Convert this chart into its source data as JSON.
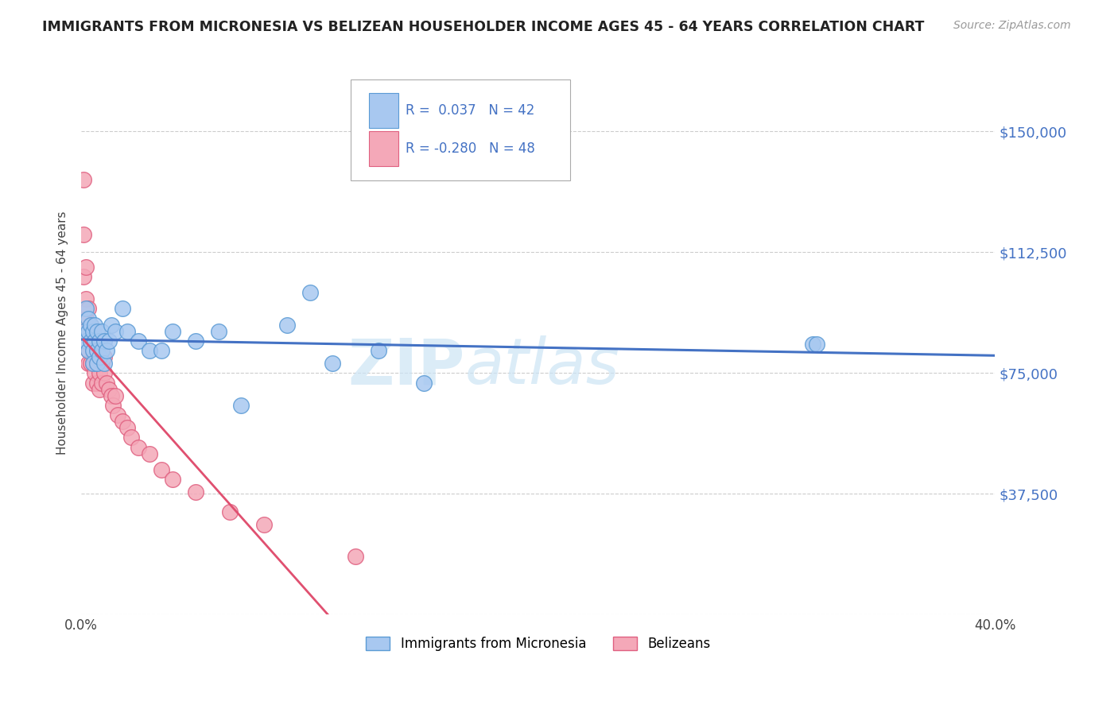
{
  "title": "IMMIGRANTS FROM MICRONESIA VS BELIZEAN HOUSEHOLDER INCOME AGES 45 - 64 YEARS CORRELATION CHART",
  "source_text": "Source: ZipAtlas.com",
  "ylabel": "Householder Income Ages 45 - 64 years",
  "xlim": [
    0.0,
    0.4
  ],
  "ylim": [
    0,
    175000
  ],
  "yticks": [
    0,
    37500,
    75000,
    112500,
    150000
  ],
  "ytick_labels": [
    "",
    "$37,500",
    "$75,000",
    "$112,500",
    "$150,000"
  ],
  "r_micronesia": 0.037,
  "n_micronesia": 42,
  "r_belizean": -0.28,
  "n_belizean": 48,
  "color_micronesia": "#a8c8f0",
  "color_belizean": "#f4a8b8",
  "edge_color_micronesia": "#5b9bd5",
  "edge_color_belizean": "#e06080",
  "trend_color_micronesia": "#4472c4",
  "trend_color_belizean": "#e05070",
  "trend_dash_color": "#e8b0c0",
  "watermark_color": "#cce4f5",
  "background_color": "#ffffff",
  "legend_box_color": "#f0f0f0",
  "scatter_micronesia_x": [
    0.001,
    0.002,
    0.002,
    0.003,
    0.003,
    0.003,
    0.004,
    0.004,
    0.005,
    0.005,
    0.005,
    0.006,
    0.006,
    0.007,
    0.007,
    0.007,
    0.008,
    0.008,
    0.009,
    0.009,
    0.01,
    0.01,
    0.011,
    0.012,
    0.013,
    0.015,
    0.018,
    0.02,
    0.025,
    0.03,
    0.035,
    0.04,
    0.05,
    0.06,
    0.07,
    0.09,
    0.1,
    0.11,
    0.13,
    0.15,
    0.32,
    0.322
  ],
  "scatter_micronesia_y": [
    88000,
    95000,
    85000,
    92000,
    88000,
    82000,
    90000,
    85000,
    88000,
    82000,
    78000,
    85000,
    90000,
    88000,
    82000,
    78000,
    85000,
    80000,
    88000,
    82000,
    85000,
    78000,
    82000,
    85000,
    90000,
    88000,
    95000,
    88000,
    85000,
    82000,
    82000,
    88000,
    85000,
    88000,
    65000,
    90000,
    100000,
    78000,
    82000,
    72000,
    84000,
    84000
  ],
  "scatter_belizean_x": [
    0.001,
    0.001,
    0.001,
    0.002,
    0.002,
    0.002,
    0.002,
    0.003,
    0.003,
    0.003,
    0.003,
    0.004,
    0.004,
    0.004,
    0.005,
    0.005,
    0.005,
    0.005,
    0.006,
    0.006,
    0.006,
    0.007,
    0.007,
    0.007,
    0.008,
    0.008,
    0.008,
    0.009,
    0.009,
    0.01,
    0.01,
    0.011,
    0.012,
    0.013,
    0.014,
    0.015,
    0.016,
    0.018,
    0.02,
    0.022,
    0.025,
    0.03,
    0.035,
    0.04,
    0.05,
    0.065,
    0.08,
    0.12
  ],
  "scatter_belizean_y": [
    135000,
    118000,
    105000,
    108000,
    98000,
    92000,
    88000,
    95000,
    88000,
    82000,
    78000,
    90000,
    85000,
    78000,
    88000,
    82000,
    78000,
    72000,
    85000,
    80000,
    75000,
    82000,
    78000,
    72000,
    80000,
    75000,
    70000,
    78000,
    72000,
    80000,
    75000,
    72000,
    70000,
    68000,
    65000,
    68000,
    62000,
    60000,
    58000,
    55000,
    52000,
    50000,
    45000,
    42000,
    38000,
    32000,
    28000,
    18000
  ]
}
